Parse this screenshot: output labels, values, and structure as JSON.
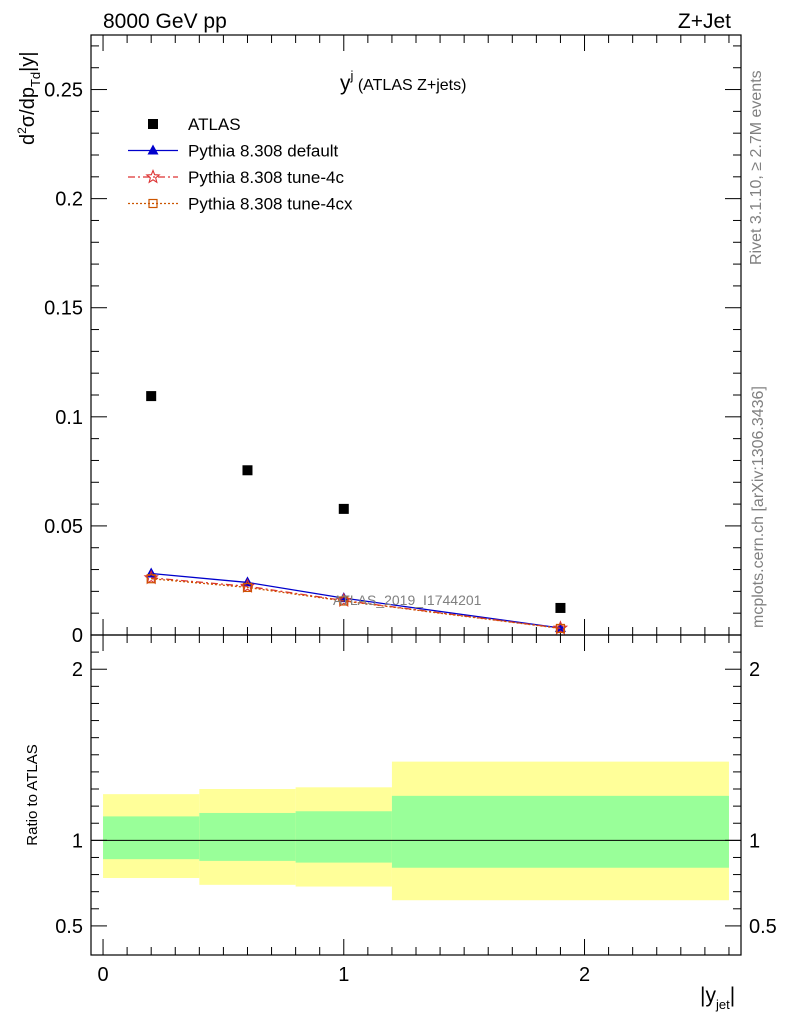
{
  "header": {
    "left": "8000 GeV pp",
    "right": "Z+Jet"
  },
  "side": {
    "rivet": "Rivet 3.1.10, ≥ 2.7M events",
    "mcplots": "mcplots.cern.ch [arXiv:1306.3436]"
  },
  "chart_data": [
    {
      "type": "scatter",
      "title_main": "y",
      "title_sup": "j",
      "title_rest": " (ATLAS Z+jets)",
      "ylabel": "d²σ/dp_Td|y|",
      "watermark": "ATLAS_2019_I1744201",
      "xlim": [
        -0.05,
        2.65
      ],
      "ylim": [
        0,
        0.275
      ],
      "yticks": [
        0,
        0.05,
        0.1,
        0.15,
        0.2,
        0.25
      ],
      "ytick_labels": [
        "0",
        "0.05",
        "0.1",
        "0.15",
        "0.2",
        "0.25"
      ],
      "legend_position": "top-left",
      "series": [
        {
          "name": "ATLAS",
          "color": "#000000",
          "marker": "square",
          "x": [
            0.2,
            0.6,
            1.0,
            1.9
          ],
          "y": [
            0.1095,
            0.0755,
            0.0578,
            0.0124
          ]
        },
        {
          "name": "Pythia 8.308 default",
          "color": "#0000cc",
          "marker": "triangle",
          "line": "solid",
          "x": [
            0.2,
            0.6,
            1.0,
            1.9
          ],
          "y": [
            0.0282,
            0.0241,
            0.0169,
            0.0032
          ]
        },
        {
          "name": "Pythia 8.308 tune-4c",
          "color": "#dd3333",
          "marker": "star",
          "line": "dashdot",
          "x": [
            0.2,
            0.6,
            1.0,
            1.9
          ],
          "y": [
            0.0262,
            0.0223,
            0.0158,
            0.0031
          ]
        },
        {
          "name": "Pythia 8.308 tune-4cx",
          "color": "#cc5500",
          "marker": "open-square",
          "line": "dotted",
          "x": [
            0.2,
            0.6,
            1.0,
            1.9
          ],
          "y": [
            0.0258,
            0.0218,
            0.0156,
            0.003
          ]
        }
      ]
    },
    {
      "type": "area",
      "ylabel": "Ratio to ATLAS",
      "xlabel_main": "|y",
      "xlabel_sub": "jet",
      "xlabel_end": "|",
      "xlim": [
        -0.05,
        2.65
      ],
      "ylim": [
        0.33,
        2.2
      ],
      "yticks": [
        0.5,
        1,
        2
      ],
      "ytick_labels": [
        "0.5",
        "1",
        "2"
      ],
      "xticks": [
        0,
        1,
        2
      ],
      "xtick_labels": [
        "0",
        "1",
        "2"
      ],
      "bins": [
        {
          "lo": 0.0,
          "hi": 0.4,
          "stat": [
            0.89,
            1.14
          ],
          "total": [
            0.78,
            1.27
          ]
        },
        {
          "lo": 0.4,
          "hi": 0.8,
          "stat": [
            0.88,
            1.16
          ],
          "total": [
            0.74,
            1.3
          ]
        },
        {
          "lo": 0.8,
          "hi": 1.2,
          "stat": [
            0.87,
            1.17
          ],
          "total": [
            0.73,
            1.31
          ]
        },
        {
          "lo": 1.2,
          "hi": 2.6,
          "stat": [
            0.84,
            1.26
          ],
          "total": [
            0.65,
            1.46
          ]
        }
      ],
      "stat_color": "#99ff99",
      "total_color": "#ffff99"
    }
  ]
}
